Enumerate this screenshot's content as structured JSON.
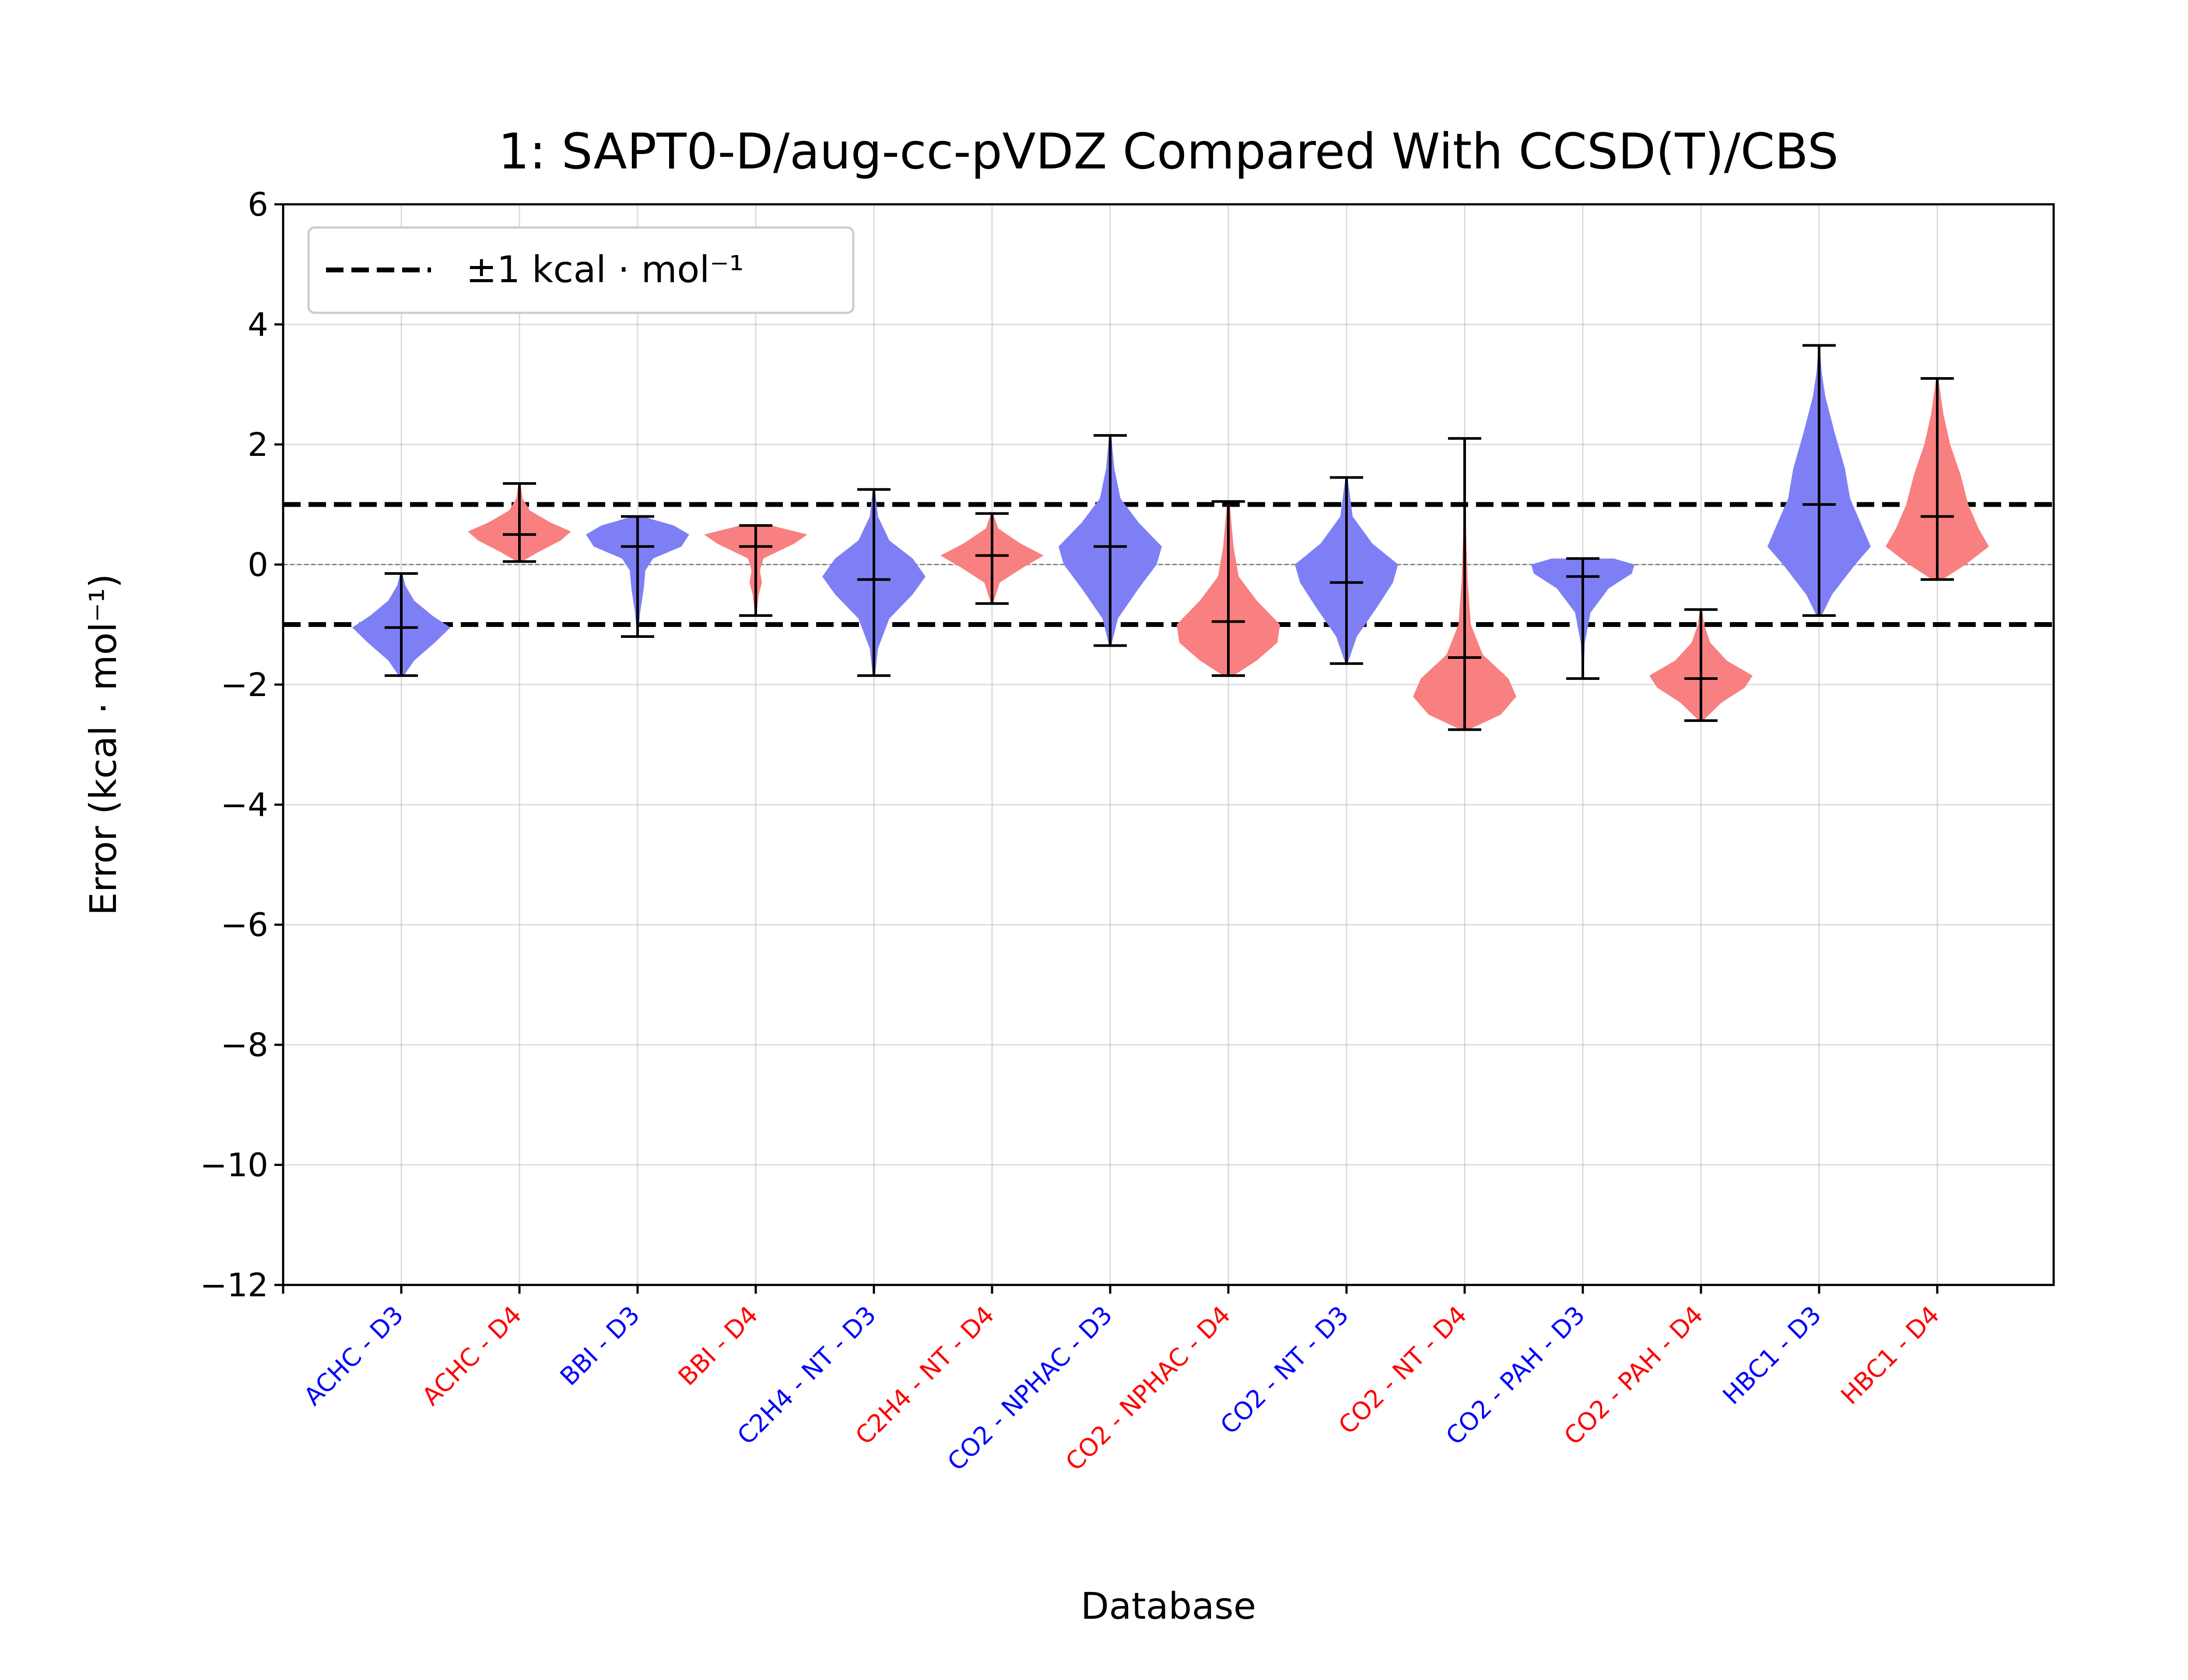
{
  "chart_data": {
    "type": "violin",
    "title": "1: SAPT0-D/aug-cc-pVDZ Compared With CCSD(T)/CBS",
    "xlabel": "Database",
    "ylabel": "Error (kcal · mol⁻¹)",
    "ylim": [
      -12,
      6
    ],
    "yticks": [
      6,
      4,
      2,
      0,
      -2,
      -4,
      -6,
      -8,
      -10,
      -12
    ],
    "ytick_labels": [
      "6",
      "4",
      "2",
      "0",
      "−2",
      "−4",
      "−6",
      "−8",
      "−10",
      "−12"
    ],
    "grid": true,
    "reference_lines": [
      {
        "y": 1,
        "style": "dashed"
      },
      {
        "y": -1,
        "style": "dashed"
      },
      {
        "y": 0,
        "style": "dashed-thin"
      }
    ],
    "legend": {
      "placement": "top-left",
      "entries": [
        {
          "label": "±1 kcal · mol⁻¹",
          "style": "dashed"
        }
      ]
    },
    "colors": {
      "D3": "#0000ff",
      "D4": "#ff0000",
      "D3_fill": "#7f7ff5",
      "D4_fill": "#f98080"
    },
    "categories": [
      {
        "label": "ACHC - D3",
        "group": "D3",
        "min": -1.85,
        "max": -0.15,
        "mean": -1.05,
        "density": [
          [
            -1.85,
            0.05
          ],
          [
            -1.6,
            0.25
          ],
          [
            -1.3,
            0.65
          ],
          [
            -1.05,
            0.95
          ],
          [
            -0.85,
            0.6
          ],
          [
            -0.6,
            0.25
          ],
          [
            -0.35,
            0.08
          ],
          [
            -0.15,
            0.02
          ]
        ]
      },
      {
        "label": "ACHC - D4",
        "group": "D4",
        "min": 0.05,
        "max": 1.35,
        "mean": 0.5,
        "density": [
          [
            0.05,
            0.05
          ],
          [
            0.2,
            0.35
          ],
          [
            0.4,
            0.8
          ],
          [
            0.55,
            1.0
          ],
          [
            0.7,
            0.6
          ],
          [
            0.9,
            0.2
          ],
          [
            1.1,
            0.06
          ],
          [
            1.35,
            0.02
          ]
        ]
      },
      {
        "label": "BBI - D3",
        "group": "D3",
        "min": -1.2,
        "max": 0.8,
        "mean": 0.3,
        "density": [
          [
            -1.2,
            0.01
          ],
          [
            -0.8,
            0.05
          ],
          [
            -0.4,
            0.12
          ],
          [
            -0.1,
            0.15
          ],
          [
            0.1,
            0.3
          ],
          [
            0.3,
            0.85
          ],
          [
            0.5,
            1.0
          ],
          [
            0.65,
            0.7
          ],
          [
            0.8,
            0.1
          ]
        ]
      },
      {
        "label": "BBI - D4",
        "group": "D4",
        "min": -0.85,
        "max": 0.65,
        "mean": 0.3,
        "density": [
          [
            -0.85,
            0.01
          ],
          [
            -0.5,
            0.06
          ],
          [
            -0.3,
            0.12
          ],
          [
            -0.1,
            0.08
          ],
          [
            0.1,
            0.15
          ],
          [
            0.35,
            0.75
          ],
          [
            0.5,
            1.0
          ],
          [
            0.65,
            0.3
          ]
        ]
      },
      {
        "label": "C2H4 - NT - D3",
        "group": "D3",
        "min": -1.85,
        "max": 1.25,
        "mean": -0.25,
        "density": [
          [
            -1.85,
            0.02
          ],
          [
            -1.4,
            0.08
          ],
          [
            -0.9,
            0.3
          ],
          [
            -0.5,
            0.75
          ],
          [
            -0.2,
            1.0
          ],
          [
            0.1,
            0.75
          ],
          [
            0.4,
            0.3
          ],
          [
            0.8,
            0.08
          ],
          [
            1.25,
            0.02
          ]
        ]
      },
      {
        "label": "C2H4 - NT - D4",
        "group": "D4",
        "min": -0.65,
        "max": 0.85,
        "mean": 0.15,
        "density": [
          [
            -0.65,
            0.02
          ],
          [
            -0.3,
            0.15
          ],
          [
            -0.05,
            0.6
          ],
          [
            0.15,
            1.0
          ],
          [
            0.35,
            0.55
          ],
          [
            0.6,
            0.12
          ],
          [
            0.85,
            0.02
          ]
        ]
      },
      {
        "label": "CO2 - NPHAC - D3",
        "group": "D3",
        "min": -1.35,
        "max": 2.15,
        "mean": 0.3,
        "density": [
          [
            -1.35,
            0.02
          ],
          [
            -0.9,
            0.15
          ],
          [
            -0.4,
            0.55
          ],
          [
            0.0,
            0.9
          ],
          [
            0.3,
            1.0
          ],
          [
            0.7,
            0.55
          ],
          [
            1.1,
            0.2
          ],
          [
            1.6,
            0.08
          ],
          [
            2.15,
            0.02
          ]
        ]
      },
      {
        "label": "CO2 - NPHAC - D4",
        "group": "D4",
        "min": -1.85,
        "max": 1.05,
        "mean": -0.95,
        "density": [
          [
            -1.85,
            0.1
          ],
          [
            -1.6,
            0.55
          ],
          [
            -1.3,
            0.95
          ],
          [
            -1.0,
            1.0
          ],
          [
            -0.6,
            0.55
          ],
          [
            -0.2,
            0.2
          ],
          [
            0.3,
            0.1
          ],
          [
            0.8,
            0.05
          ],
          [
            1.05,
            0.02
          ]
        ]
      },
      {
        "label": "CO2 - NT - D3",
        "group": "D3",
        "min": -1.65,
        "max": 1.45,
        "mean": -0.3,
        "density": [
          [
            -1.65,
            0.02
          ],
          [
            -1.2,
            0.2
          ],
          [
            -0.7,
            0.6
          ],
          [
            -0.3,
            0.9
          ],
          [
            0.0,
            1.0
          ],
          [
            0.35,
            0.5
          ],
          [
            0.8,
            0.12
          ],
          [
            1.45,
            0.02
          ]
        ]
      },
      {
        "label": "CO2 - NT - D4",
        "group": "D4",
        "min": -2.75,
        "max": 2.1,
        "mean": -1.55,
        "density": [
          [
            -2.75,
            0.08
          ],
          [
            -2.5,
            0.7
          ],
          [
            -2.2,
            1.0
          ],
          [
            -1.9,
            0.85
          ],
          [
            -1.5,
            0.35
          ],
          [
            -1.0,
            0.12
          ],
          [
            -0.3,
            0.06
          ],
          [
            0.5,
            0.03
          ],
          [
            1.3,
            0.015
          ],
          [
            2.1,
            0.005
          ]
        ]
      },
      {
        "label": "CO2 - PAH - D3",
        "group": "D3",
        "min": -1.9,
        "max": 0.1,
        "mean": -0.2,
        "density": [
          [
            -1.9,
            0.01
          ],
          [
            -1.3,
            0.04
          ],
          [
            -0.8,
            0.15
          ],
          [
            -0.4,
            0.5
          ],
          [
            -0.15,
            0.95
          ],
          [
            0.0,
            1.0
          ],
          [
            0.1,
            0.6
          ]
        ]
      },
      {
        "label": "CO2 - PAH - D4",
        "group": "D4",
        "min": -2.6,
        "max": -0.75,
        "mean": -1.9,
        "density": [
          [
            -2.6,
            0.04
          ],
          [
            -2.3,
            0.4
          ],
          [
            -2.05,
            0.85
          ],
          [
            -1.85,
            1.0
          ],
          [
            -1.6,
            0.5
          ],
          [
            -1.3,
            0.18
          ],
          [
            -1.0,
            0.06
          ],
          [
            -0.75,
            0.02
          ]
        ]
      },
      {
        "label": "HBC1 - D3",
        "group": "D3",
        "min": -0.85,
        "max": 3.65,
        "mean": 1.0,
        "density": [
          [
            -0.85,
            0.05
          ],
          [
            -0.5,
            0.25
          ],
          [
            0.0,
            0.7
          ],
          [
            0.3,
            1.0
          ],
          [
            0.7,
            0.8
          ],
          [
            1.1,
            0.6
          ],
          [
            1.6,
            0.5
          ],
          [
            2.2,
            0.3
          ],
          [
            2.8,
            0.12
          ],
          [
            3.2,
            0.05
          ],
          [
            3.65,
            0.01
          ]
        ]
      },
      {
        "label": "HBC1 - D4",
        "group": "D4",
        "min": -0.25,
        "max": 3.1,
        "mean": 0.8,
        "density": [
          [
            -0.25,
            0.1
          ],
          [
            0.0,
            0.55
          ],
          [
            0.3,
            1.0
          ],
          [
            0.6,
            0.8
          ],
          [
            1.0,
            0.6
          ],
          [
            1.5,
            0.45
          ],
          [
            2.0,
            0.25
          ],
          [
            2.5,
            0.12
          ],
          [
            3.1,
            0.02
          ]
        ]
      }
    ]
  }
}
